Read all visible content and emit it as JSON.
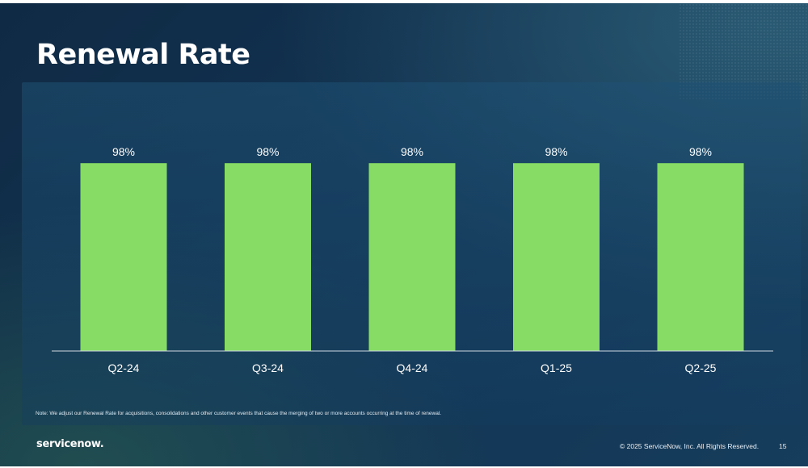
{
  "slide": {
    "title": "Renewal Rate",
    "note": "Note: We adjust our Renewal Rate for acquisitions, consolidations and other customer events that cause the merging of two or more accounts occurring at the time of renewal.",
    "logo": "servicenow.",
    "copyright": "© 2025 ServiceNow, Inc. All Rights Reserved.",
    "page_number": "15"
  },
  "colors": {
    "bar": "#86dc64",
    "text": "#ffffff",
    "axis": "#cfd8e0"
  },
  "chart_data": {
    "type": "bar",
    "title": "Renewal Rate",
    "categories": [
      "Q2-24",
      "Q3-24",
      "Q4-24",
      "Q1-25",
      "Q2-25"
    ],
    "values": [
      98,
      98,
      98,
      98,
      98
    ],
    "data_labels": [
      "98%",
      "98%",
      "98%",
      "98%",
      "98%"
    ],
    "xlabel": "",
    "ylabel": "",
    "ylim": [
      0,
      100
    ],
    "grid": false,
    "legend": "none"
  }
}
